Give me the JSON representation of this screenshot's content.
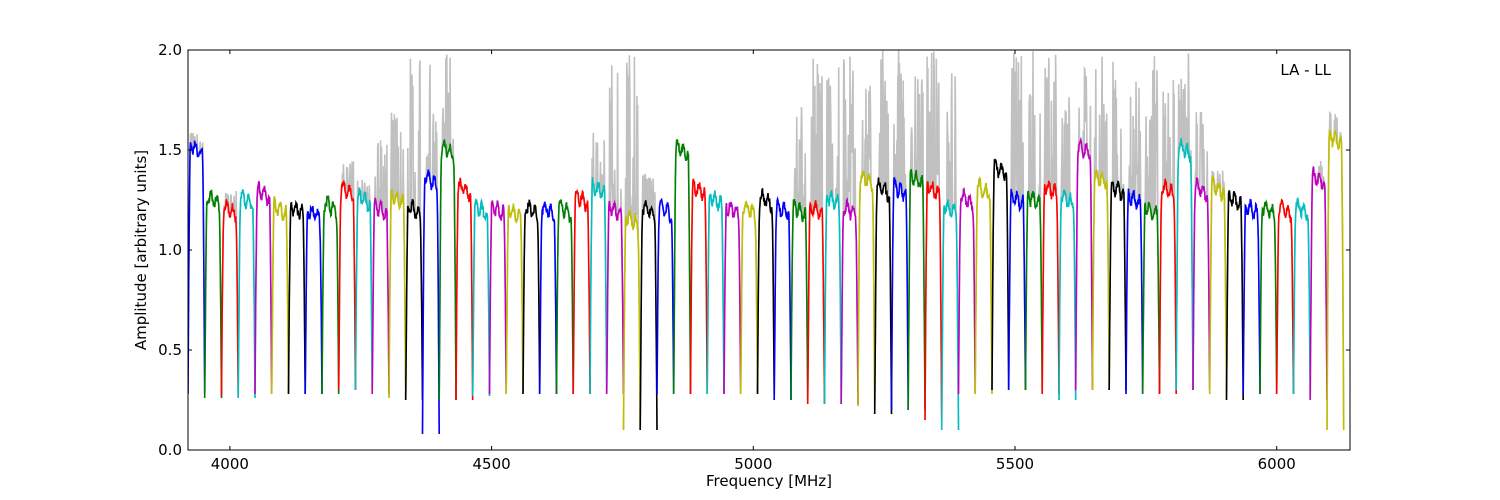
{
  "chart_data": {
    "type": "line",
    "title": "",
    "xlabel": "Frequency [MHz]",
    "ylabel": "Amplitude [arbitrary units]",
    "xlim": [
      3920,
      6140
    ],
    "ylim": [
      0.0,
      2.0
    ],
    "xticks": [
      4000,
      4500,
      5000,
      5500,
      6000
    ],
    "yticks": [
      0.0,
      0.5,
      1.0,
      1.5,
      2.0
    ],
    "xtick_labels": [
      "4000",
      "4500",
      "5000",
      "5500",
      "6000"
    ],
    "ytick_labels": [
      "0.0",
      "0.5",
      "1.0",
      "1.5",
      "2.0"
    ],
    "annotation": "LA - LL",
    "grid": false,
    "legend": "none",
    "background_series_color": "#c0c0c0",
    "channel_colors": [
      "#0000ff",
      "#008000",
      "#ff0000",
      "#00bfbf",
      "#bf00bf",
      "#bfbf00",
      "#000000"
    ],
    "band_start_mhz": 3920,
    "band_width_mhz": 32,
    "band_count": 69,
    "band_peak_levels": [
      1.5,
      1.25,
      1.2,
      1.25,
      1.28,
      1.2,
      1.2,
      1.18,
      1.22,
      1.3,
      1.25,
      1.2,
      1.25,
      1.2,
      1.35,
      1.5,
      1.3,
      1.2,
      1.2,
      1.18,
      1.2,
      1.2,
      1.2,
      1.25,
      1.3,
      1.2,
      1.15,
      1.2,
      1.2,
      1.5,
      1.3,
      1.25,
      1.2,
      1.2,
      1.25,
      1.2,
      1.2,
      1.2,
      1.25,
      1.2,
      1.35,
      1.3,
      1.3,
      1.35,
      1.3,
      1.2,
      1.25,
      1.3,
      1.4,
      1.25,
      1.25,
      1.3,
      1.25,
      1.5,
      1.35,
      1.3,
      1.25,
      1.2,
      1.3,
      1.5,
      1.3,
      1.3,
      1.25,
      1.2,
      1.2,
      1.2,
      1.2,
      1.35,
      1.55
    ],
    "band_min_levels": [
      0.28,
      0.26,
      0.27,
      0.26,
      0.28,
      0.28,
      0.28,
      0.28,
      0.28,
      0.3,
      0.3,
      0.28,
      0.26,
      0.25,
      0.08,
      0.25,
      0.25,
      0.27,
      0.28,
      0.28,
      0.28,
      0.28,
      0.28,
      0.28,
      0.28,
      0.28,
      0.1,
      0.1,
      0.28,
      0.28,
      0.28,
      0.28,
      0.28,
      0.28,
      0.28,
      0.25,
      0.25,
      0.23,
      0.23,
      0.23,
      0.22,
      0.18,
      0.2,
      0.2,
      0.15,
      0.1,
      0.28,
      0.28,
      0.3,
      0.3,
      0.3,
      0.28,
      0.25,
      0.3,
      0.3,
      0.3,
      0.28,
      0.28,
      0.28,
      0.3,
      0.3,
      0.28,
      0.25,
      0.28,
      0.28,
      0.28,
      0.28,
      0.25,
      0.1
    ],
    "band_spike_levels": [
      1.6,
      1.3,
      1.3,
      1.28,
      1.3,
      1.2,
      1.2,
      1.2,
      1.2,
      1.45,
      1.4,
      1.6,
      1.7,
      2.0,
      2.0,
      2.0,
      1.3,
      1.2,
      1.2,
      1.18,
      1.2,
      1.2,
      1.2,
      1.25,
      1.6,
      2.0,
      2.0,
      1.4,
      1.2,
      1.3,
      1.2,
      1.25,
      1.2,
      1.2,
      1.25,
      1.2,
      1.8,
      2.0,
      2.0,
      2.0,
      1.9,
      2.0,
      2.0,
      2.0,
      2.0,
      1.9,
      1.3,
      1.3,
      1.4,
      2.0,
      2.0,
      2.0,
      1.9,
      2.0,
      2.0,
      2.0,
      1.9,
      2.0,
      1.9,
      2.0,
      1.7,
      1.4,
      1.3,
      1.2,
      1.2,
      1.2,
      1.2,
      1.45,
      1.7
    ]
  }
}
